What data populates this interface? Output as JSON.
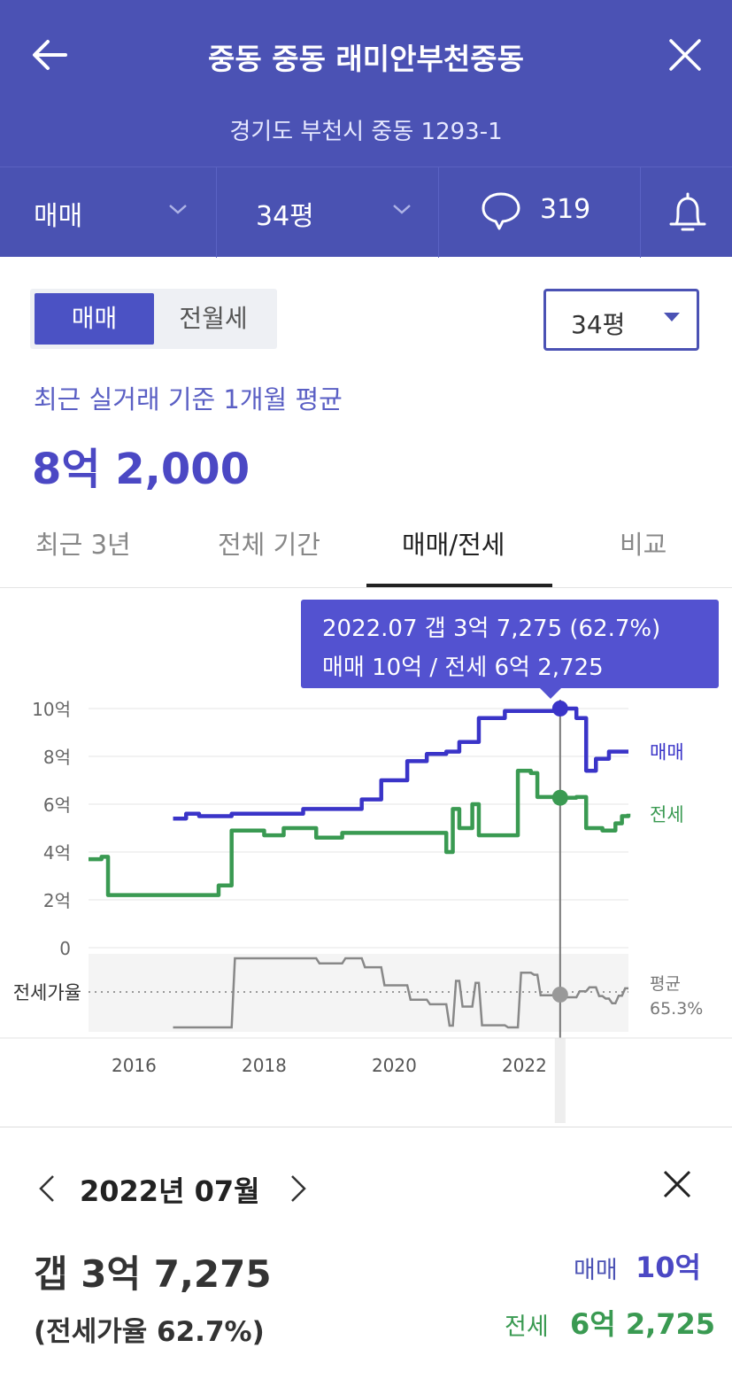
{
  "header": {
    "title": "중동 중동 래미안부천중동",
    "address": "경기도 부천시 중동 1293-1"
  },
  "filter_bar": {
    "trade_type": "매매",
    "area": "34평",
    "comment_count": "319"
  },
  "toggle": {
    "options": [
      "매매",
      "전월세"
    ],
    "selected": "매매"
  },
  "area_select": {
    "value": "34평"
  },
  "summary": {
    "caption": "최근 실거래 기준 1개월 평균",
    "price": "8억 2,000"
  },
  "tabs": [
    {
      "label": "최근 3년",
      "active": false
    },
    {
      "label": "전체 기간",
      "active": false
    },
    {
      "label": "매매/전세",
      "active": true
    },
    {
      "label": "비교",
      "active": false
    }
  ],
  "tooltip": {
    "line1": "2022.07  갭 3억 7,275 (62.7%)",
    "line2": "매매 10억 / 전세 6억 2,725"
  },
  "chart_data": {
    "type": "line",
    "y_unit": "억",
    "ylim": [
      0,
      10
    ],
    "yticks": [
      "10억",
      "8억",
      "6억",
      "4억",
      "2억",
      "0"
    ],
    "xticks": [
      "2016",
      "2018",
      "2020",
      "2022"
    ],
    "ratio_label": "전세가율",
    "ratio_avg_label": "평균",
    "ratio_avg_value": "65.3%",
    "series": [
      {
        "name": "매매",
        "color": "#3a34c8",
        "points": [
          [
            2016.6,
            5.4
          ],
          [
            2016.8,
            5.6
          ],
          [
            2017.0,
            5.5
          ],
          [
            2017.5,
            5.6
          ],
          [
            2018.0,
            5.6
          ],
          [
            2018.3,
            5.6
          ],
          [
            2018.6,
            5.8
          ],
          [
            2019.0,
            5.8
          ],
          [
            2019.5,
            6.2
          ],
          [
            2019.8,
            7.0
          ],
          [
            2020.2,
            7.8
          ],
          [
            2020.5,
            8.1
          ],
          [
            2020.8,
            8.2
          ],
          [
            2021.0,
            8.6
          ],
          [
            2021.3,
            9.6
          ],
          [
            2021.7,
            9.9
          ],
          [
            2022.0,
            9.9
          ],
          [
            2022.3,
            9.9
          ],
          [
            2022.55,
            10.0
          ],
          [
            2022.8,
            9.6
          ],
          [
            2022.95,
            7.4
          ],
          [
            2023.1,
            7.9
          ],
          [
            2023.3,
            8.2
          ],
          [
            2023.6,
            8.2
          ]
        ]
      },
      {
        "name": "전세",
        "color": "#3a9a52",
        "points": [
          [
            2015.3,
            3.7
          ],
          [
            2015.5,
            3.8
          ],
          [
            2015.6,
            2.2
          ],
          [
            2016.0,
            2.2
          ],
          [
            2016.5,
            2.2
          ],
          [
            2017.0,
            2.2
          ],
          [
            2017.3,
            2.6
          ],
          [
            2017.5,
            4.9
          ],
          [
            2017.8,
            4.9
          ],
          [
            2018.0,
            4.7
          ],
          [
            2018.3,
            5.0
          ],
          [
            2018.6,
            5.0
          ],
          [
            2018.8,
            4.6
          ],
          [
            2019.2,
            4.8
          ],
          [
            2019.6,
            4.8
          ],
          [
            2020.0,
            4.8
          ],
          [
            2020.4,
            4.8
          ],
          [
            2020.6,
            4.8
          ],
          [
            2020.8,
            4.0
          ],
          [
            2020.9,
            5.8
          ],
          [
            2021.0,
            5.0
          ],
          [
            2021.2,
            6.0
          ],
          [
            2021.3,
            4.7
          ],
          [
            2021.8,
            4.7
          ],
          [
            2021.9,
            7.4
          ],
          [
            2022.1,
            7.3
          ],
          [
            2022.2,
            6.3
          ],
          [
            2022.55,
            6.27
          ],
          [
            2022.8,
            6.3
          ],
          [
            2022.95,
            5.0
          ],
          [
            2023.2,
            4.9
          ],
          [
            2023.4,
            5.2
          ],
          [
            2023.5,
            5.5
          ],
          [
            2023.6,
            5.6
          ]
        ]
      }
    ],
    "selected_x": 2022.55
  },
  "detail": {
    "year_month": "2022년 07월",
    "gap": "갭 3억 7,275",
    "ratio": "(전세가율 62.7%)",
    "sale_label": "매매",
    "sale_value": "10억",
    "jeonse_label": "전세",
    "jeonse_value": "6억 2,725"
  }
}
